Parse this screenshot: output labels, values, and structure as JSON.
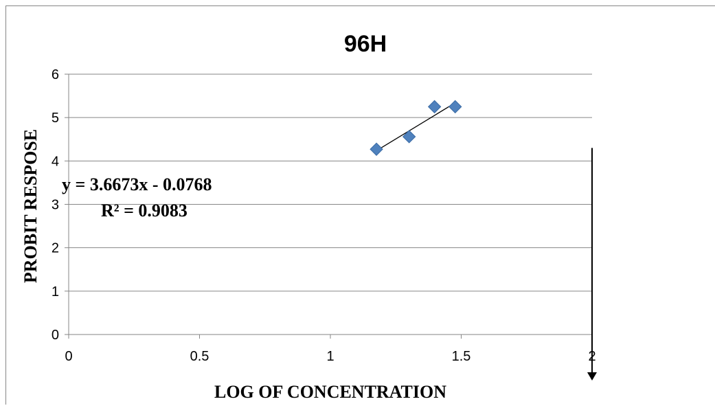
{
  "chart_data": {
    "type": "scatter",
    "title": "96H",
    "xlabel": "LOG OF CONCENTRATION",
    "ylabel": "PROBIT RESPOSE",
    "xlim": [
      0,
      2
    ],
    "ylim": [
      0,
      6
    ],
    "x_ticks": [
      "0",
      "0.5",
      "1",
      "1.5",
      "2"
    ],
    "y_ticks": [
      "0",
      "1",
      "2",
      "3",
      "4",
      "5",
      "6"
    ],
    "grid": "horizontal",
    "marker": "diamond",
    "series": [
      {
        "points": [
          {
            "x": 1.176,
            "y": 4.27
          },
          {
            "x": 1.301,
            "y": 4.56
          },
          {
            "x": 1.398,
            "y": 5.25
          },
          {
            "x": 1.477,
            "y": 5.25
          }
        ]
      }
    ],
    "trendline": {
      "slope": 3.6673,
      "intercept": -0.0768,
      "x_range": [
        1.176,
        1.477
      ]
    },
    "equation_label": "y = 3.6673x - 0.0768",
    "r2_label": "R² = 0.9083",
    "annotation": {
      "type": "arrow",
      "x": 2.0,
      "y_from": 4.3,
      "y_to": -1.0
    },
    "colors": {
      "marker": "#4F81BD",
      "gridline": "#868686",
      "axis": "#868686",
      "trendline": "#000000"
    }
  }
}
